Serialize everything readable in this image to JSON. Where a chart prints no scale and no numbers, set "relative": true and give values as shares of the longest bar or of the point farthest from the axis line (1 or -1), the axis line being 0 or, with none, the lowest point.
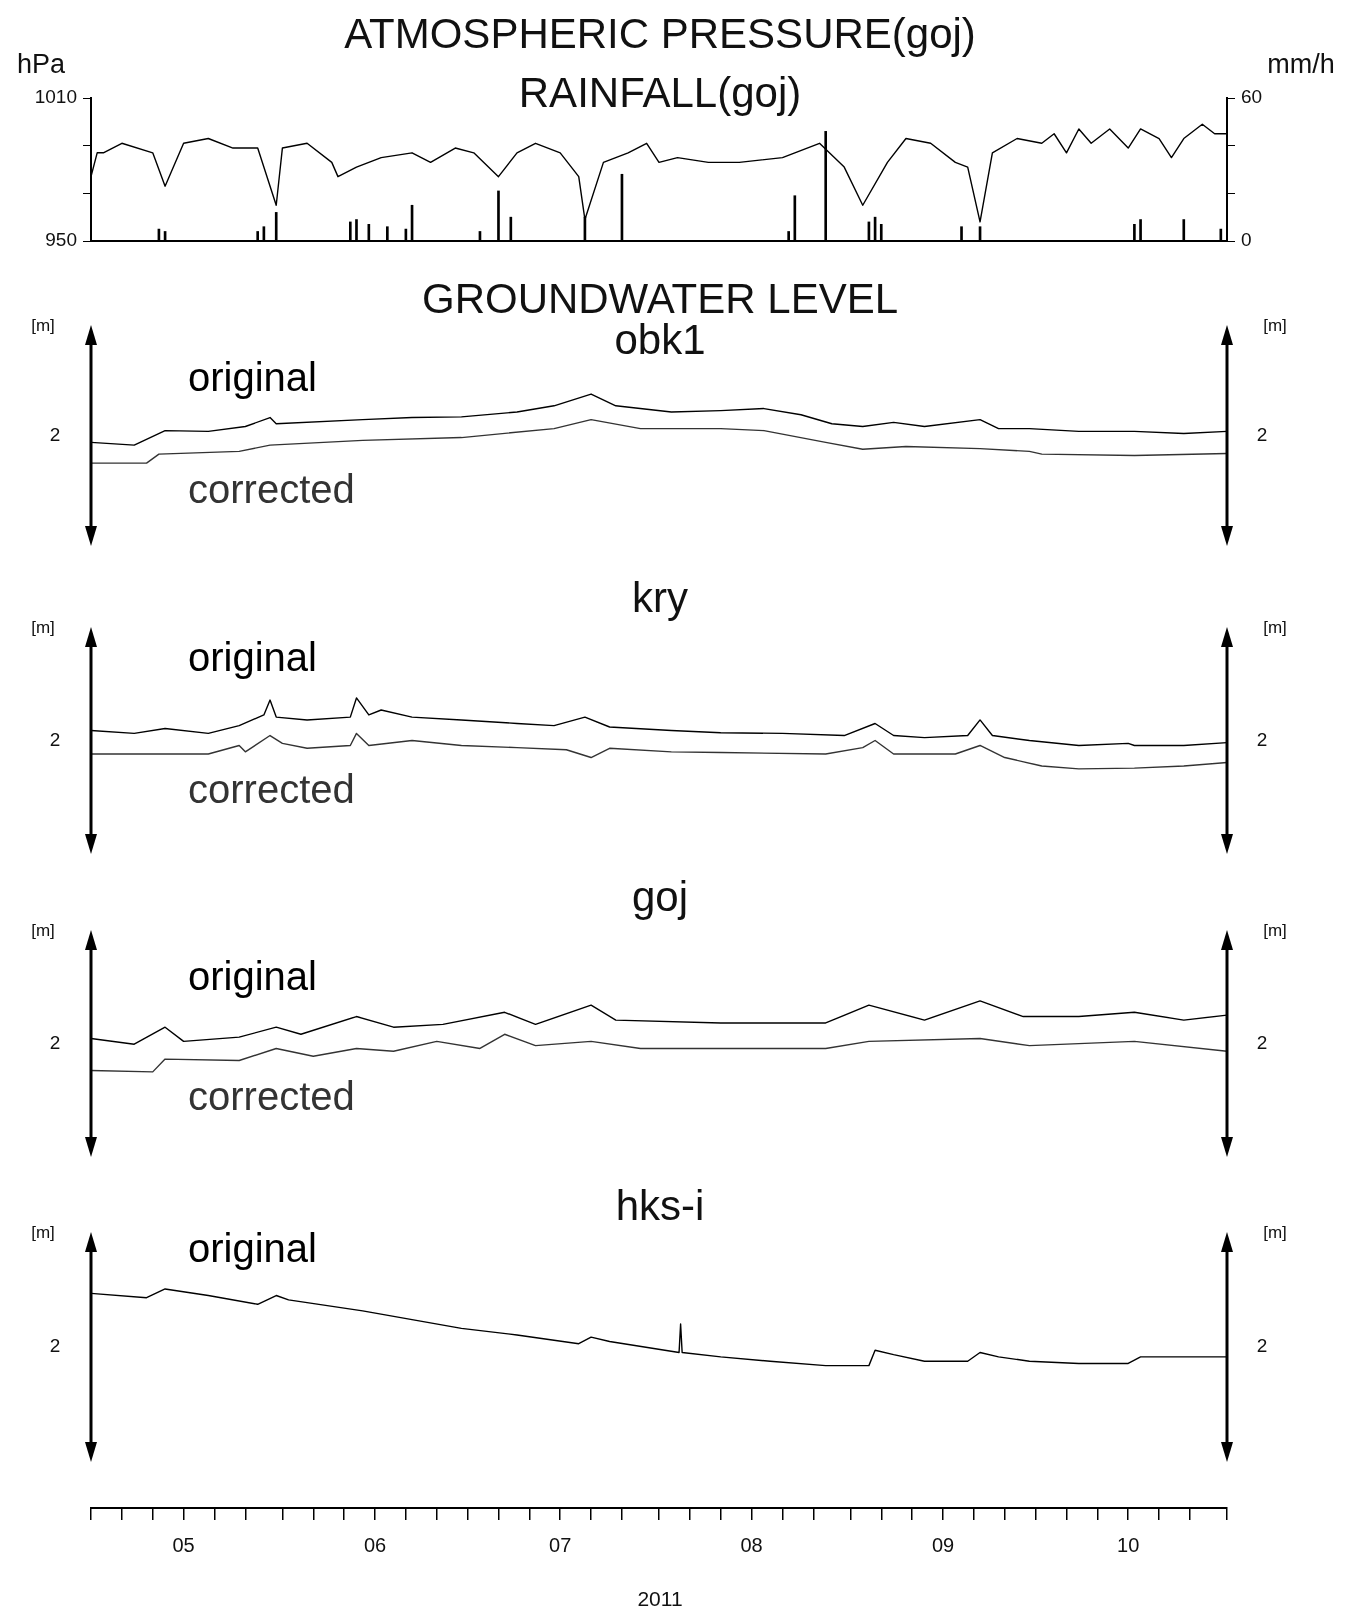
{
  "chart_data": [
    {
      "type": "line",
      "title": "ATMOSPHERIC PRESSURE(goj)",
      "subtitle": "RAINFALL(goj)",
      "ylabel": "hPa",
      "y2label": "mm/h",
      "tick_labels": "y",
      "xlim": [
        "2011-05-01",
        "2011-11-01"
      ],
      "ylim": [
        950,
        1010
      ],
      "yticks": [
        950,
        {
          "value": 970,
          "label": null
        },
        {
          "value": 990,
          "label": null
        },
        1010
      ],
      "y2lim": [
        0,
        60
      ],
      "y2ticks": [
        0,
        {
          "value": 20,
          "label": null
        },
        {
          "value": 40,
          "label": null
        },
        60
      ],
      "series": [
        {
          "color": "#000000",
          "x": [
            "2011-05-01",
            "2011-05-02",
            "2011-05-03",
            "2011-05-06",
            "2011-05-11",
            "2011-05-13",
            "2011-05-16",
            "2011-05-20",
            "2011-05-24",
            "2011-05-28",
            "2011-05-31",
            "2011-06-01",
            "2011-06-05",
            "2011-06-09",
            "2011-06-10",
            "2011-06-13",
            "2011-06-17",
            "2011-06-22",
            "2011-06-25",
            "2011-06-29",
            "2011-07-02",
            "2011-07-06",
            "2011-07-09",
            "2011-07-12",
            "2011-07-16",
            "2011-07-19",
            "2011-07-20",
            "2011-07-23",
            "2011-07-27",
            "2011-07-30",
            "2011-08-01",
            "2011-08-04",
            "2011-08-09",
            "2011-08-14",
            "2011-08-21",
            "2011-08-27",
            "2011-08-31",
            "2011-09-03",
            "2011-09-07",
            "2011-09-10",
            "2011-09-14",
            "2011-09-18",
            "2011-09-20",
            "2011-09-22",
            "2011-09-24",
            "2011-09-28",
            "2011-10-02",
            "2011-10-04",
            "2011-10-06",
            "2011-10-08",
            "2011-10-10",
            "2011-10-13",
            "2011-10-16",
            "2011-10-18",
            "2011-10-21",
            "2011-10-23",
            "2011-10-25",
            "2011-10-28",
            "2011-10-30",
            "2011-11-01"
          ],
          "values": [
            977,
            987,
            987,
            991,
            987,
            973,
            991,
            993,
            989,
            989,
            965,
            989,
            991,
            983,
            977,
            981,
            985,
            987,
            983,
            989,
            987,
            977,
            987,
            991,
            987,
            977,
            959,
            983,
            987,
            991,
            983,
            985,
            983,
            983,
            985,
            991,
            981,
            965,
            983,
            993,
            991,
            983,
            981,
            958,
            987,
            993,
            991,
            995,
            987,
            997,
            991,
            997,
            989,
            997,
            993,
            985,
            993,
            999,
            995,
            995
          ]
        },
        {
          "type": "bar",
          "axis": "y2",
          "color": "#000000",
          "x": [
            "2011-05-12",
            "2011-05-13",
            "2011-05-28",
            "2011-05-29",
            "2011-05-31",
            "2011-06-12",
            "2011-06-13",
            "2011-06-15",
            "2011-06-18",
            "2011-06-21",
            "2011-06-22",
            "2011-07-03",
            "2011-07-06",
            "2011-07-08",
            "2011-07-20",
            "2011-07-26",
            "2011-08-22",
            "2011-08-23",
            "2011-08-28",
            "2011-09-04",
            "2011-09-05",
            "2011-09-06",
            "2011-09-19",
            "2011-09-22",
            "2011-10-17",
            "2011-10-18",
            "2011-10-25",
            "2011-10-31"
          ],
          "values": [
            5,
            4,
            4,
            6,
            12,
            8,
            9,
            7,
            6,
            5,
            15,
            4,
            21,
            10,
            10,
            28,
            4,
            19,
            46,
            8,
            10,
            7,
            6,
            6,
            7,
            9,
            9,
            5
          ]
        }
      ]
    },
    {
      "type": "line",
      "title": "GROUNDWATER LEVEL",
      "subtitle": "obk1",
      "ylabel": "[m]",
      "y2label": "[m]",
      "relative": true,
      "tick_labels": false,
      "annotations": [
        "2",
        "2"
      ],
      "xlim": [
        "2011-05-01",
        "2011-11-01"
      ],
      "series": [
        {
          "name": "original",
          "color": "#000000",
          "x": [
            "2011-05-01",
            "2011-05-08",
            "2011-05-13",
            "2011-05-20",
            "2011-05-26",
            "2011-05-30",
            "2011-05-31",
            "2011-06-14",
            "2011-06-22",
            "2011-06-30",
            "2011-07-09",
            "2011-07-15",
            "2011-07-21",
            "2011-07-25",
            "2011-08-03",
            "2011-08-11",
            "2011-08-18",
            "2011-08-24",
            "2011-08-29",
            "2011-09-03",
            "2011-09-08",
            "2011-09-13",
            "2011-09-22",
            "2011-09-25",
            "2011-09-30",
            "2011-10-08",
            "2011-10-17",
            "2011-10-25",
            "2011-11-01"
          ],
          "values": [
            0.3,
            0.26,
            0.47,
            0.46,
            0.53,
            0.66,
            0.57,
            0.63,
            0.66,
            0.67,
            0.74,
            0.83,
            1,
            0.83,
            0.74,
            0.76,
            0.79,
            0.7,
            0.57,
            0.53,
            0.59,
            0.53,
            0.63,
            0.5,
            0.5,
            0.46,
            0.46,
            0.43,
            0.46
          ]
        },
        {
          "name": "corrected",
          "color": "#333333",
          "x": [
            "2011-05-01",
            "2011-05-10",
            "2011-05-12",
            "2011-05-25",
            "2011-05-30",
            "2011-06-14",
            "2011-06-30",
            "2011-07-15",
            "2011-07-21",
            "2011-07-29",
            "2011-08-11",
            "2011-08-18",
            "2011-08-28",
            "2011-09-03",
            "2011-09-10",
            "2011-09-22",
            "2011-09-30",
            "2011-10-02",
            "2011-10-17",
            "2011-11-01"
          ],
          "values": [
            0,
            0,
            0.13,
            0.17,
            0.26,
            0.33,
            0.37,
            0.5,
            0.63,
            0.5,
            0.5,
            0.47,
            0.3,
            0.2,
            0.24,
            0.21,
            0.17,
            0.13,
            0.11,
            0.14
          ]
        }
      ]
    },
    {
      "type": "line",
      "title": "kry",
      "ylabel": "[m]",
      "y2label": "[m]",
      "relative": true,
      "tick_labels": false,
      "annotations": [
        "2",
        "2"
      ],
      "xlim": [
        "2011-05-01",
        "2011-11-01"
      ],
      "series": [
        {
          "name": "original",
          "color": "#000000",
          "x": [
            "2011-05-01",
            "2011-05-08",
            "2011-05-13",
            "2011-05-20",
            "2011-05-25",
            "2011-05-29",
            "2011-05-30",
            "2011-05-31",
            "2011-06-05",
            "2011-06-12",
            "2011-06-13",
            "2011-06-15",
            "2011-06-17",
            "2011-06-22",
            "2011-06-30",
            "2011-07-09",
            "2011-07-15",
            "2011-07-20",
            "2011-07-24",
            "2011-08-03",
            "2011-08-11",
            "2011-08-21",
            "2011-08-31",
            "2011-09-05",
            "2011-09-08",
            "2011-09-13",
            "2011-09-20",
            "2011-09-22",
            "2011-09-24",
            "2011-09-30",
            "2011-10-08",
            "2011-10-16",
            "2011-10-17",
            "2011-10-25",
            "2011-11-01"
          ],
          "values": [
            0.54,
            0.5,
            0.57,
            0.5,
            0.61,
            0.76,
            0.97,
            0.73,
            0.69,
            0.73,
            1,
            0.76,
            0.83,
            0.73,
            0.69,
            0.64,
            0.61,
            0.73,
            0.59,
            0.54,
            0.51,
            0.5,
            0.47,
            0.64,
            0.47,
            0.44,
            0.47,
            0.69,
            0.47,
            0.4,
            0.33,
            0.36,
            0.33,
            0.33,
            0.37
          ]
        },
        {
          "name": "corrected",
          "color": "#333333",
          "x": [
            "2011-05-01",
            "2011-05-20",
            "2011-05-25",
            "2011-05-26",
            "2011-05-30",
            "2011-06-01",
            "2011-06-05",
            "2011-06-12",
            "2011-06-13",
            "2011-06-15",
            "2011-06-22",
            "2011-06-30",
            "2011-07-09",
            "2011-07-17",
            "2011-07-21",
            "2011-07-24",
            "2011-08-03",
            "2011-08-11",
            "2011-08-28",
            "2011-09-03",
            "2011-09-05",
            "2011-09-08",
            "2011-09-18",
            "2011-09-22",
            "2011-09-26",
            "2011-10-02",
            "2011-10-08",
            "2011-10-17",
            "2011-10-25",
            "2011-11-01"
          ],
          "values": [
            0.21,
            0.21,
            0.33,
            0.24,
            0.47,
            0.36,
            0.29,
            0.33,
            0.5,
            0.33,
            0.4,
            0.33,
            0.3,
            0.27,
            0.16,
            0.29,
            0.24,
            0.23,
            0.21,
            0.3,
            0.4,
            0.21,
            0.21,
            0.33,
            0.16,
            0.04,
            0,
            0.01,
            0.04,
            0.09
          ]
        }
      ]
    },
    {
      "type": "line",
      "title": "goj",
      "ylabel": "[m]",
      "y2label": "[m]",
      "relative": true,
      "tick_labels": false,
      "annotations": [
        "2",
        "2"
      ],
      "xlim": [
        "2011-05-01",
        "2011-11-01"
      ],
      "series": [
        {
          "name": "original",
          "color": "#000000",
          "x": [
            "2011-05-01",
            "2011-05-08",
            "2011-05-13",
            "2011-05-16",
            "2011-05-25",
            "2011-05-31",
            "2011-06-04",
            "2011-06-13",
            "2011-06-19",
            "2011-06-27",
            "2011-07-07",
            "2011-07-12",
            "2011-07-21",
            "2011-07-25",
            "2011-08-11",
            "2011-08-28",
            "2011-09-04",
            "2011-09-13",
            "2011-09-22",
            "2011-09-29",
            "2011-10-08",
            "2011-10-17",
            "2011-10-25",
            "2011-11-01"
          ],
          "values": [
            0.47,
            0.39,
            0.63,
            0.43,
            0.49,
            0.63,
            0.53,
            0.78,
            0.63,
            0.67,
            0.84,
            0.67,
            0.94,
            0.73,
            0.69,
            0.69,
            0.94,
            0.73,
            1,
            0.78,
            0.78,
            0.84,
            0.73,
            0.8
          ]
        },
        {
          "name": "corrected",
          "color": "#333333",
          "x": [
            "2011-05-01",
            "2011-05-11",
            "2011-05-13",
            "2011-05-25",
            "2011-05-31",
            "2011-06-06",
            "2011-06-13",
            "2011-06-19",
            "2011-06-26",
            "2011-07-03",
            "2011-07-07",
            "2011-07-12",
            "2011-07-21",
            "2011-07-29",
            "2011-08-28",
            "2011-09-04",
            "2011-09-22",
            "2011-09-30",
            "2011-10-17",
            "2011-11-01"
          ],
          "values": [
            0.02,
            0,
            0.18,
            0.16,
            0.33,
            0.22,
            0.33,
            0.29,
            0.43,
            0.33,
            0.53,
            0.37,
            0.43,
            0.33,
            0.33,
            0.43,
            0.47,
            0.37,
            0.43,
            0.29
          ]
        }
      ]
    },
    {
      "type": "line",
      "title": "hks-i",
      "ylabel": "[m]",
      "y2label": "[m]",
      "xlabel": "2011",
      "relative": true,
      "tick_labels": "x",
      "annotations": [
        "2",
        "2"
      ],
      "xlim": [
        "2011-05-01",
        "2011-11-01"
      ],
      "xticks": [
        {
          "value": "2011-05-01",
          "label": null
        },
        {
          "value": "2011-05-06",
          "label": null
        },
        {
          "value": "2011-05-11",
          "label": null
        },
        {
          "value": "2011-05-16",
          "label": "05"
        },
        {
          "value": "2011-05-21",
          "label": null
        },
        {
          "value": "2011-05-26",
          "label": null
        },
        {
          "value": "2011-06-01",
          "label": null
        },
        {
          "value": "2011-06-06",
          "label": null
        },
        {
          "value": "2011-06-11",
          "label": null
        },
        {
          "value": "2011-06-16",
          "label": "06"
        },
        {
          "value": "2011-06-21",
          "label": null
        },
        {
          "value": "2011-06-26",
          "label": null
        },
        {
          "value": "2011-07-01",
          "label": null
        },
        {
          "value": "2011-07-06",
          "label": null
        },
        {
          "value": "2011-07-11",
          "label": null
        },
        {
          "value": "2011-07-16",
          "label": "07"
        },
        {
          "value": "2011-07-21",
          "label": null
        },
        {
          "value": "2011-07-26",
          "label": null
        },
        {
          "value": "2011-08-01",
          "label": null
        },
        {
          "value": "2011-08-06",
          "label": null
        },
        {
          "value": "2011-08-11",
          "label": null
        },
        {
          "value": "2011-08-16",
          "label": "08"
        },
        {
          "value": "2011-08-21",
          "label": null
        },
        {
          "value": "2011-08-26",
          "label": null
        },
        {
          "value": "2011-09-01",
          "label": null
        },
        {
          "value": "2011-09-06",
          "label": null
        },
        {
          "value": "2011-09-11",
          "label": null
        },
        {
          "value": "2011-09-16",
          "label": "09"
        },
        {
          "value": "2011-09-21",
          "label": null
        },
        {
          "value": "2011-09-26",
          "label": null
        },
        {
          "value": "2011-10-01",
          "label": null
        },
        {
          "value": "2011-10-06",
          "label": null
        },
        {
          "value": "2011-10-11",
          "label": null
        },
        {
          "value": "2011-10-16",
          "label": "10"
        },
        {
          "value": "2011-10-21",
          "label": null
        },
        {
          "value": "2011-10-26",
          "label": null
        },
        {
          "value": "2011-11-01",
          "label": null
        }
      ],
      "series": [
        {
          "name": "original",
          "color": "#000000",
          "x": [
            "2011-05-01",
            "2011-05-10",
            "2011-05-13",
            "2011-05-20",
            "2011-05-28",
            "2011-05-31",
            "2011-06-02",
            "2011-06-14",
            "2011-06-22",
            "2011-06-30",
            "2011-07-09",
            "2011-07-19",
            "2011-07-21",
            "2011-07-24",
            "2011-08-04T06:00",
            "2011-08-04T12:00",
            "2011-08-04T18:00",
            "2011-08-11",
            "2011-08-19",
            "2011-08-28",
            "2011-09-04",
            "2011-09-05",
            "2011-09-08",
            "2011-09-13",
            "2011-09-20",
            "2011-09-22",
            "2011-09-25",
            "2011-09-30",
            "2011-10-08",
            "2011-10-16",
            "2011-10-18",
            "2011-10-25",
            "2011-11-01"
          ],
          "values": [
            0.98,
            0.96,
            1,
            0.97,
            0.93,
            0.97,
            0.95,
            0.9,
            0.86,
            0.82,
            0.79,
            0.75,
            0.78,
            0.76,
            0.71,
            0.84,
            0.71,
            0.69,
            0.67,
            0.65,
            0.65,
            0.72,
            0.7,
            0.67,
            0.67,
            0.71,
            0.69,
            0.67,
            0.66,
            0.66,
            0.69,
            0.69,
            0.69
          ]
        }
      ]
    }
  ]
}
